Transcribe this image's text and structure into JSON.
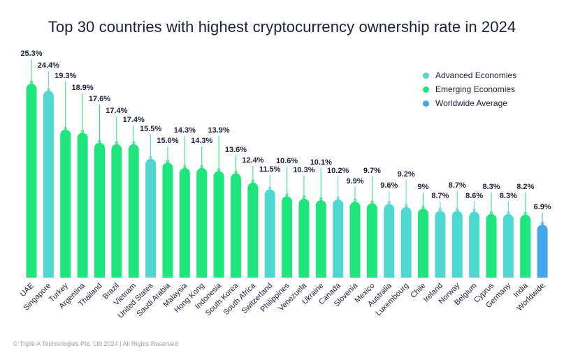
{
  "chart_data": {
    "type": "bar",
    "title": "Top 30 countries with highest cryptocurrency ownership rate in 2024",
    "ylim": [
      0,
      26
    ],
    "categories": [
      "UAE",
      "Singapore",
      "Turkey",
      "Argentina",
      "Thailand",
      "Brazil",
      "Vietnam",
      "United States",
      "Saudi Arabia",
      "Malaysia",
      "Hong Kong",
      "Indonesia",
      "South Korea",
      "South Africa",
      "Switzerland",
      "Philippines",
      "Venezuela",
      "Ukraine",
      "Canada",
      "Slovenia",
      "Mexico",
      "Australia",
      "Luxembourg",
      "Chile",
      "Ireland",
      "Norway",
      "Belgium",
      "Cyprus",
      "Germany",
      "India",
      "Worldwide"
    ],
    "values": [
      25.3,
      24.4,
      19.3,
      18.9,
      17.6,
      17.4,
      17.4,
      15.5,
      15.0,
      14.3,
      14.3,
      13.9,
      13.6,
      12.4,
      11.5,
      10.6,
      10.3,
      10.1,
      10.2,
      9.9,
      9.7,
      9.6,
      9.2,
      9,
      8.7,
      8.7,
      8.6,
      8.3,
      8.3,
      8.2,
      6.9
    ],
    "value_labels": [
      "25.3%",
      "24.4%",
      "19.3%",
      "18.9%",
      "17.6%",
      "17.4%",
      "17.4%",
      "15.5%",
      "15.0%",
      "14.3%",
      "14.3%",
      "13.9%",
      "13.6%",
      "12.4%",
      "11.5%",
      "10.6%",
      "10.3%",
      "10.1%",
      "10.2%",
      "9.9%",
      "9.7%",
      "9.6%",
      "9.2%",
      "9%",
      "8.7%",
      "8.7%",
      "8.6%",
      "8.3%",
      "8.3%",
      "8.2%",
      "6.9%"
    ],
    "groups": [
      "Emerging Economies",
      "Advanced Economies",
      "Emerging Economies",
      "Emerging Economies",
      "Emerging Economies",
      "Emerging Economies",
      "Emerging Economies",
      "Advanced Economies",
      "Emerging Economies",
      "Emerging Economies",
      "Emerging Economies",
      "Emerging Economies",
      "Emerging Economies",
      "Emerging Economies",
      "Advanced Economies",
      "Emerging Economies",
      "Emerging Economies",
      "Emerging Economies",
      "Advanced Economies",
      "Emerging Economies",
      "Emerging Economies",
      "Advanced Economies",
      "Advanced Economies",
      "Emerging Economies",
      "Advanced Economies",
      "Advanced Economies",
      "Advanced Economies",
      "Emerging Economies",
      "Advanced Economies",
      "Emerging Economies",
      "Worldwide Average"
    ],
    "legend": [
      {
        "name": "Advanced Economies",
        "color": "#4fd8cf"
      },
      {
        "name": "Emerging Economies",
        "color": "#1fe57d"
      },
      {
        "name": "Worldwide Average",
        "color": "#41a6ea"
      }
    ],
    "legend_position": "top-right"
  },
  "footer": "© Triple A Technologies Pte. Ltd 2024 | All Rights Reserved"
}
